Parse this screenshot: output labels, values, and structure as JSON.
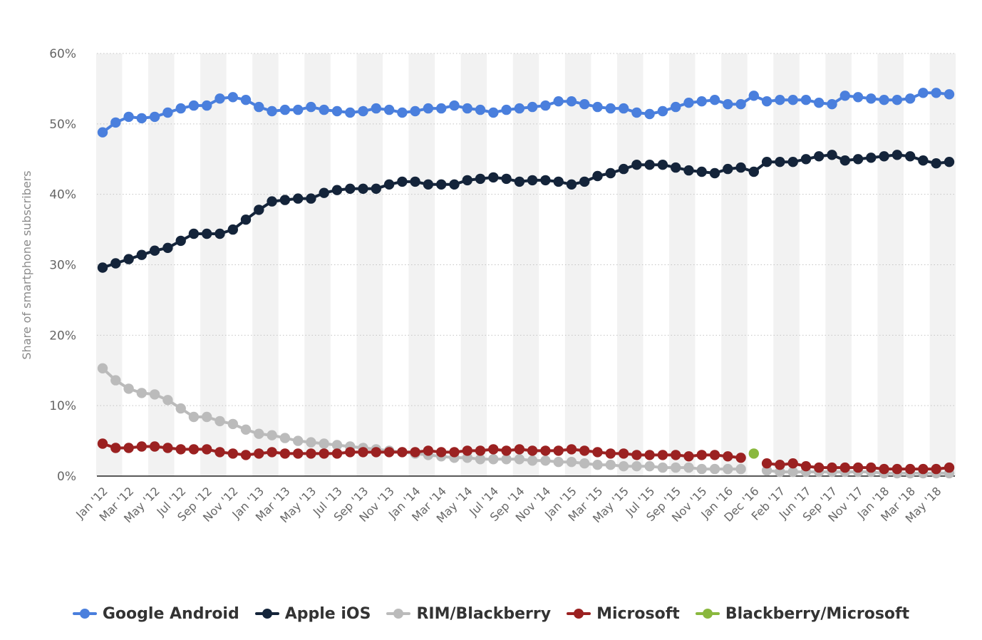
{
  "chart_data": {
    "type": "line",
    "title": "",
    "xlabel": "",
    "ylabel": "Share of smartphone subscribers",
    "ylim": [
      0,
      60
    ],
    "yticks": [
      "0%",
      "10%",
      "20%",
      "30%",
      "40%",
      "50%",
      "60%"
    ],
    "grid": true,
    "legend_position": "bottom",
    "x": [
      "Jan '12",
      "Feb '12",
      "Mar '12",
      "Apr '12",
      "May '12",
      "Jun '12",
      "Jul '12",
      "Aug '12",
      "Sep '12",
      "Oct '12",
      "Nov '12",
      "Dec '12",
      "Jan '13",
      "Feb '13",
      "Mar '13",
      "Apr '13",
      "May '13",
      "Jun '13",
      "Jul '13",
      "Aug '13",
      "Sep '13",
      "Oct '13",
      "Nov '13",
      "Dec '13",
      "Jan '14",
      "Feb '14",
      "Mar '14",
      "Apr '14",
      "May '14",
      "Jun '14",
      "Jul '14",
      "Aug '14",
      "Sep '14",
      "Oct '14",
      "Nov '14",
      "Dec '14",
      "Jan '15",
      "Feb '15",
      "Mar '15",
      "Apr '15",
      "May '15",
      "Jun '15",
      "Jul '15",
      "Aug '15",
      "Sep '15",
      "Oct '15",
      "Nov '15",
      "Dec '15",
      "Jan '16",
      "Feb '16",
      "Dec '16",
      "Jan '17",
      "Feb '17",
      "Mar '17",
      "Jun '17",
      "Jul '17",
      "Sep '17",
      "Oct '17",
      "Nov '17",
      "Dec '17",
      "Jan '18",
      "Feb '18",
      "Mar '18",
      "Apr '18",
      "May '18",
      "Jun '18"
    ],
    "x_tick_labels": [
      "Jan '12",
      "Mar '12",
      "May '12",
      "Jul '12",
      "Sep '12",
      "Nov '12",
      "Jan '13",
      "Mar '13",
      "May '13",
      "Jul '13",
      "Sep '13",
      "Nov '13",
      "Jan '14",
      "Mar '14",
      "May '14",
      "Jul '14",
      "Sep '14",
      "Nov '14",
      "Jan '15",
      "Mar '15",
      "May '15",
      "Jul '15",
      "Sep '15",
      "Nov '15",
      "Jan '16",
      "Dec '16",
      "Feb '17",
      "Jun '17",
      "Sep '17",
      "Nov '17",
      "Jan '18",
      "Mar '18",
      "May '18"
    ],
    "series": [
      {
        "name": "Google Android",
        "color": "#4a7fdd",
        "values": [
          48.8,
          50.2,
          51.0,
          50.8,
          51.0,
          51.6,
          52.2,
          52.6,
          52.6,
          53.6,
          53.8,
          53.4,
          52.4,
          51.8,
          52.0,
          52.0,
          52.4,
          52.0,
          51.8,
          51.6,
          51.8,
          52.2,
          52.0,
          51.6,
          51.8,
          52.2,
          52.2,
          52.6,
          52.2,
          52.0,
          51.6,
          52.0,
          52.2,
          52.4,
          52.6,
          53.2,
          53.2,
          52.8,
          52.4,
          52.2,
          52.2,
          51.6,
          51.4,
          51.8,
          52.4,
          53.0,
          53.2,
          53.4,
          52.8,
          52.8,
          54.0,
          53.2,
          53.4,
          53.4,
          53.4,
          53.0,
          52.8,
          54.0,
          53.8,
          53.6,
          53.4,
          53.4,
          53.6,
          54.4,
          54.4,
          54.2
        ]
      },
      {
        "name": "Apple iOS",
        "color": "#14243a",
        "values": [
          29.6,
          30.2,
          30.8,
          31.4,
          32.0,
          32.4,
          33.4,
          34.4,
          34.4,
          34.4,
          35.0,
          36.4,
          37.8,
          39.0,
          39.2,
          39.4,
          39.4,
          40.2,
          40.6,
          40.8,
          40.8,
          40.8,
          41.4,
          41.8,
          41.8,
          41.4,
          41.4,
          41.4,
          42.0,
          42.2,
          42.4,
          42.2,
          41.8,
          42.0,
          42.0,
          41.8,
          41.4,
          41.8,
          42.6,
          43.0,
          43.6,
          44.2,
          44.2,
          44.2,
          43.8,
          43.4,
          43.2,
          43.0,
          43.6,
          43.8,
          43.2,
          44.6,
          44.6,
          44.6,
          45.0,
          45.4,
          45.6,
          44.8,
          45.0,
          45.2,
          45.4,
          45.6,
          45.4,
          44.8,
          44.4,
          44.6
        ]
      },
      {
        "name": "RIM/Blackberry",
        "color": "#bbbbbb",
        "values": [
          15.3,
          13.6,
          12.4,
          11.8,
          11.6,
          10.8,
          9.6,
          8.4,
          8.4,
          7.8,
          7.4,
          6.6,
          6.0,
          5.8,
          5.4,
          5.0,
          4.8,
          4.6,
          4.4,
          4.2,
          4.0,
          3.8,
          3.6,
          3.4,
          3.2,
          3.0,
          2.8,
          2.6,
          2.6,
          2.4,
          2.4,
          2.4,
          2.4,
          2.2,
          2.2,
          2.0,
          2.0,
          1.8,
          1.6,
          1.6,
          1.4,
          1.4,
          1.4,
          1.2,
          1.2,
          1.2,
          1.0,
          1.0,
          1.0,
          1.0,
          null,
          0.8,
          0.6,
          0.6,
          0.6,
          0.6,
          0.6,
          0.6,
          0.6,
          0.6,
          0.4,
          0.4,
          0.4,
          0.4,
          0.4,
          0.4
        ]
      },
      {
        "name": "Microsoft",
        "color": "#9b2121",
        "values": [
          4.6,
          4.0,
          4.0,
          4.2,
          4.2,
          4.0,
          3.8,
          3.8,
          3.8,
          3.4,
          3.2,
          3.0,
          3.2,
          3.4,
          3.2,
          3.2,
          3.2,
          3.2,
          3.2,
          3.4,
          3.4,
          3.4,
          3.4,
          3.4,
          3.4,
          3.6,
          3.4,
          3.4,
          3.6,
          3.6,
          3.8,
          3.6,
          3.8,
          3.6,
          3.6,
          3.6,
          3.8,
          3.6,
          3.4,
          3.2,
          3.2,
          3.0,
          3.0,
          3.0,
          3.0,
          2.8,
          3.0,
          3.0,
          2.8,
          2.6,
          null,
          1.8,
          1.6,
          1.8,
          1.4,
          1.2,
          1.2,
          1.2,
          1.2,
          1.2,
          1.0,
          1.0,
          1.0,
          1.0,
          1.0,
          1.2
        ]
      },
      {
        "name": "Blackberry/Microsoft",
        "color": "#8ab83e",
        "values": [
          null,
          null,
          null,
          null,
          null,
          null,
          null,
          null,
          null,
          null,
          null,
          null,
          null,
          null,
          null,
          null,
          null,
          null,
          null,
          null,
          null,
          null,
          null,
          null,
          null,
          null,
          null,
          null,
          null,
          null,
          null,
          null,
          null,
          null,
          null,
          null,
          null,
          null,
          null,
          null,
          null,
          null,
          null,
          null,
          null,
          null,
          null,
          null,
          null,
          null,
          3.2,
          null,
          null,
          null,
          null,
          null,
          null,
          null,
          null,
          null,
          null,
          null,
          null,
          null,
          null,
          null
        ]
      }
    ]
  }
}
